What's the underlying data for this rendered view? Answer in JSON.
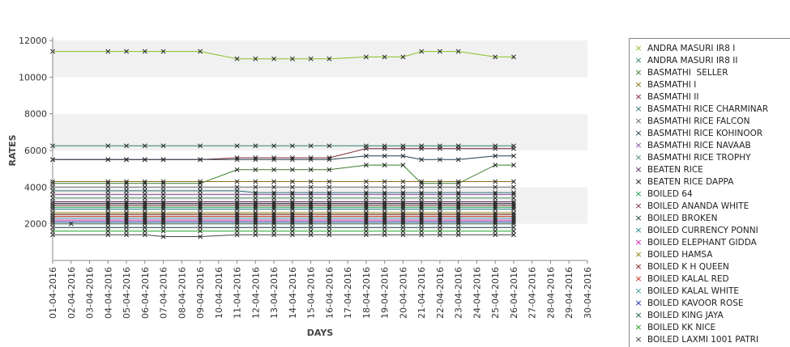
{
  "chart_data": {
    "type": "line",
    "xlabel": "DAYS",
    "ylabel": "RATES",
    "ylim": [
      0,
      12000
    ],
    "yticks": [
      2000,
      4000,
      6000,
      8000,
      10000,
      12000
    ],
    "grid": "alternating horizontal bands",
    "legend_position": "right",
    "x": [
      "01-04-2016",
      "02-04-2016",
      "03-04-2016",
      "04-04-2016",
      "05-04-2016",
      "06-04-2016",
      "07-04-2016",
      "08-04-2016",
      "09-04-2016",
      "10-04-2016",
      "11-04-2016",
      "12-04-2016",
      "13-04-2016",
      "14-04-2016",
      "15-04-2016",
      "16-04-2016",
      "17-04-2016",
      "18-04-2016",
      "19-04-2016",
      "20-04-2016",
      "21-04-2016",
      "22-04-2016",
      "23-04-2016",
      "24-04-2016",
      "25-04-2016",
      "26-04-2016",
      "27-04-2016",
      "28-04-2016",
      "29-04-2016",
      "30-04-2016"
    ],
    "series": [
      {
        "name": "ANDRA MASURI IR8 I",
        "color": "#8cbf26",
        "values": [
          11400,
          null,
          null,
          11400,
          11400,
          11400,
          11400,
          null,
          11400,
          null,
          11000,
          11000,
          11000,
          11000,
          11000,
          11000,
          null,
          11100,
          11100,
          11100,
          11400,
          11400,
          11400,
          null,
          11100,
          11100,
          null,
          null,
          null,
          null
        ]
      },
      {
        "name": "ANDRA MASURI IR8 II",
        "color": "#2f7f6f",
        "values": [
          6250,
          null,
          null,
          6250,
          6250,
          6250,
          6250,
          null,
          6250,
          null,
          6250,
          6250,
          6250,
          6250,
          6250,
          6250,
          null,
          6250,
          6250,
          6250,
          6250,
          6250,
          6250,
          null,
          6250,
          6250,
          null,
          null,
          null,
          null
        ]
      },
      {
        "name": "BASMATHI  SELLER",
        "color": "#3b7a2a",
        "values": [
          4200,
          null,
          null,
          4200,
          4200,
          4200,
          4200,
          null,
          4200,
          null,
          4950,
          4950,
          4950,
          4950,
          4950,
          4950,
          null,
          5200,
          5200,
          5200,
          4200,
          4200,
          4200,
          null,
          5200,
          5200,
          null,
          null,
          null,
          null
        ]
      },
      {
        "name": "BASMATHI I",
        "color": "#8a6d1a",
        "values": [
          4300,
          null,
          null,
          4300,
          4300,
          4300,
          4300,
          null,
          4300,
          null,
          4300,
          4300,
          4300,
          4300,
          4300,
          4300,
          null,
          4300,
          4300,
          4300,
          4300,
          4300,
          4300,
          null,
          4300,
          4300,
          null,
          null,
          null,
          null
        ]
      },
      {
        "name": "BASMATHI II",
        "color": "#7a2030",
        "values": [
          5500,
          null,
          null,
          5500,
          5500,
          5500,
          5500,
          null,
          5500,
          null,
          5600,
          5600,
          5600,
          5600,
          5600,
          5600,
          null,
          6100,
          6100,
          6100,
          6100,
          6100,
          6100,
          null,
          6100,
          6100,
          null,
          null,
          null,
          null
        ]
      },
      {
        "name": "BASMATHI RICE CHARMINAR",
        "color": "#2a6f7a",
        "values": [
          3800,
          null,
          null,
          3800,
          3800,
          3800,
          3800,
          null,
          3800,
          null,
          3800,
          3700,
          3700,
          3700,
          3700,
          3700,
          null,
          3700,
          3700,
          3700,
          3700,
          3700,
          3700,
          null,
          3700,
          3700,
          null,
          null,
          null,
          null
        ]
      },
      {
        "name": "BASMATHI RICE FALCON",
        "color": "#666666",
        "values": [
          4000,
          null,
          null,
          4000,
          4000,
          4000,
          4000,
          null,
          4000,
          null,
          4000,
          4000,
          4000,
          4000,
          4000,
          4000,
          null,
          4000,
          4000,
          4000,
          4000,
          4000,
          4000,
          null,
          4000,
          4000,
          null,
          null,
          null,
          null
        ]
      },
      {
        "name": "BASMATHI RICE KOHINOOR",
        "color": "#1f3f4f",
        "values": [
          5500,
          null,
          null,
          5500,
          5500,
          5500,
          5500,
          null,
          5500,
          null,
          5500,
          5500,
          5500,
          5500,
          5500,
          5500,
          null,
          5700,
          5700,
          5700,
          5500,
          5500,
          5500,
          null,
          5700,
          5700,
          null,
          null,
          null,
          null
        ]
      },
      {
        "name": "BASMATHI RICE NAVAAB",
        "color": "#8a4fa0",
        "values": [
          3600,
          null,
          null,
          3600,
          3600,
          3600,
          3600,
          null,
          3600,
          null,
          3600,
          3600,
          3600,
          3600,
          3600,
          3600,
          null,
          3600,
          3600,
          3600,
          3600,
          3600,
          3600,
          null,
          3600,
          3600,
          null,
          null,
          null,
          null
        ]
      },
      {
        "name": "BASMATHI RICE TROPHY",
        "color": "#4a8a6a",
        "values": [
          3400,
          null,
          null,
          3400,
          3400,
          3400,
          3400,
          null,
          3400,
          null,
          3400,
          3400,
          3400,
          3400,
          3400,
          3400,
          null,
          3400,
          3400,
          3400,
          3400,
          3400,
          3400,
          null,
          3400,
          3400,
          null,
          null,
          null,
          null
        ]
      },
      {
        "name": "BEATEN RICE",
        "color": "#5a2a6a",
        "values": [
          3200,
          null,
          null,
          3200,
          3200,
          3200,
          3200,
          null,
          3200,
          null,
          3200,
          3200,
          3200,
          3200,
          3200,
          3200,
          null,
          3200,
          3200,
          3200,
          3200,
          3200,
          3200,
          null,
          3200,
          3200,
          null,
          null,
          null,
          null
        ]
      },
      {
        "name": "BEATEN RICE DAPPA",
        "color": "#111111",
        "values": [
          3100,
          null,
          null,
          3100,
          3100,
          3100,
          3100,
          null,
          3100,
          null,
          3100,
          3100,
          3100,
          3100,
          3100,
          3100,
          null,
          3100,
          3100,
          3100,
          3100,
          3100,
          3100,
          null,
          3100,
          3100,
          null,
          null,
          null,
          null
        ]
      },
      {
        "name": "BOILED 64",
        "color": "#1aa04a",
        "values": [
          2900,
          null,
          null,
          2900,
          2900,
          2900,
          2900,
          null,
          2900,
          null,
          2900,
          2900,
          2900,
          2900,
          2900,
          2900,
          null,
          2900,
          2900,
          2900,
          2900,
          2900,
          2900,
          null,
          2900,
          2900,
          null,
          null,
          null,
          null
        ]
      },
      {
        "name": "BOILED ANANDA WHITE",
        "color": "#7a2a40",
        "values": [
          3000,
          null,
          null,
          3000,
          3000,
          3000,
          3000,
          null,
          3000,
          null,
          3000,
          3000,
          3000,
          3000,
          3000,
          3000,
          null,
          3000,
          3000,
          3000,
          3000,
          3000,
          3000,
          null,
          3000,
          3000,
          null,
          null,
          null,
          null
        ]
      },
      {
        "name": "BOILED BROKEN",
        "color": "#1a3a3a",
        "values": [
          1800,
          null,
          null,
          1800,
          1800,
          1800,
          1800,
          null,
          1800,
          null,
          1800,
          1800,
          1800,
          1800,
          1800,
          1800,
          null,
          1800,
          1800,
          1800,
          1800,
          1800,
          1800,
          null,
          1800,
          1800,
          null,
          null,
          null,
          null
        ]
      },
      {
        "name": "BOILED CURRENCY PONNI",
        "color": "#2a8a8a",
        "values": [
          2800,
          null,
          null,
          2800,
          2800,
          2800,
          2800,
          null,
          2800,
          null,
          2800,
          2800,
          2800,
          2800,
          2800,
          2800,
          null,
          2800,
          2800,
          2800,
          2800,
          2800,
          2800,
          null,
          2800,
          2800,
          null,
          null,
          null,
          null
        ]
      },
      {
        "name": "BOILED ELEPHANT GIDDA",
        "color": "#d020b0",
        "values": [
          2200,
          null,
          null,
          2200,
          2200,
          2200,
          2200,
          null,
          2200,
          null,
          2200,
          2200,
          2200,
          2200,
          2200,
          2200,
          null,
          2200,
          2200,
          2200,
          2200,
          2200,
          2200,
          null,
          2200,
          2200,
          null,
          null,
          null,
          null
        ]
      },
      {
        "name": "BOILED HAMSA",
        "color": "#8a8a10",
        "values": [
          2600,
          null,
          null,
          2600,
          2600,
          2600,
          2600,
          null,
          2600,
          null,
          2600,
          2600,
          2600,
          2600,
          2600,
          2600,
          null,
          2600,
          2600,
          2600,
          2600,
          2600,
          2600,
          null,
          2600,
          2600,
          null,
          null,
          null,
          null
        ]
      },
      {
        "name": "BOILED K H QUEEN",
        "color": "#7a1a1a",
        "values": [
          2500,
          null,
          null,
          2500,
          2500,
          2500,
          2500,
          null,
          2500,
          null,
          2500,
          2500,
          2500,
          2500,
          2500,
          2500,
          null,
          2500,
          2500,
          2500,
          2500,
          2500,
          2500,
          null,
          2500,
          2500,
          null,
          null,
          null,
          null
        ]
      },
      {
        "name": "BOILED KALAL RED",
        "color": "#c03020",
        "values": [
          2400,
          null,
          null,
          2400,
          2400,
          2400,
          2400,
          null,
          2400,
          null,
          2400,
          2400,
          2400,
          2400,
          2400,
          2400,
          null,
          2400,
          2400,
          2400,
          2400,
          2400,
          2400,
          null,
          2400,
          2400,
          null,
          null,
          null,
          null
        ]
      },
      {
        "name": "BOILED KALAL WHITE",
        "color": "#3a9a9a",
        "values": [
          2300,
          null,
          null,
          2300,
          2300,
          2300,
          2300,
          null,
          2300,
          null,
          2300,
          2300,
          2300,
          2300,
          2300,
          2300,
          null,
          2300,
          2300,
          2300,
          2300,
          2300,
          2300,
          null,
          2300,
          2300,
          null,
          null,
          null,
          null
        ]
      },
      {
        "name": "BOILED KAVOOR ROSE",
        "color": "#1a2aa0",
        "values": [
          2100,
          null,
          null,
          2100,
          2100,
          2100,
          2100,
          null,
          2100,
          null,
          2100,
          2100,
          2100,
          2100,
          2100,
          2100,
          null,
          2100,
          2100,
          2100,
          2100,
          2100,
          2100,
          null,
          2100,
          2100,
          null,
          null,
          null,
          null
        ]
      },
      {
        "name": "BOILED KING JAYA",
        "color": "#1a5a3a",
        "values": [
          2000,
          2000,
          null,
          2000,
          2000,
          2000,
          2000,
          null,
          2000,
          null,
          2000,
          2000,
          2000,
          2000,
          2000,
          2000,
          null,
          2000,
          2000,
          2000,
          2000,
          2000,
          2000,
          null,
          2000,
          2000,
          null,
          null,
          null,
          null
        ]
      },
      {
        "name": "BOILED KK NICE",
        "color": "#20a020",
        "values": [
          1600,
          null,
          null,
          1600,
          1600,
          1600,
          1600,
          null,
          1600,
          null,
          1600,
          1600,
          1600,
          1600,
          1600,
          1600,
          null,
          1600,
          1600,
          1600,
          1600,
          1600,
          1600,
          null,
          1600,
          1600,
          null,
          null,
          null,
          null
        ]
      },
      {
        "name": "BOILED LAXMI 1001 PATRI",
        "color": "#444444",
        "values": [
          1400,
          null,
          null,
          1400,
          1400,
          1400,
          1300,
          null,
          1300,
          null,
          1400,
          1400,
          1400,
          1400,
          1400,
          1400,
          null,
          1400,
          1400,
          1400,
          1400,
          1400,
          1400,
          null,
          1400,
          1400,
          null,
          null,
          null,
          null
        ]
      }
    ]
  }
}
